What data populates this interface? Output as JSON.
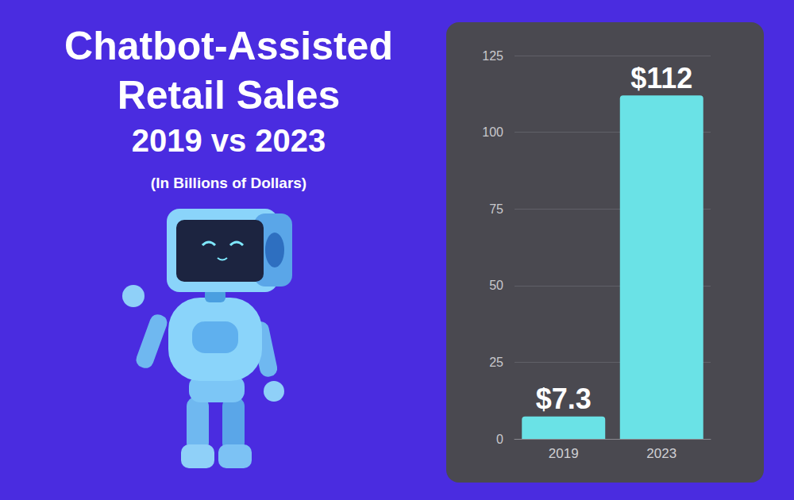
{
  "chart_data": {
    "type": "bar",
    "title": "Chatbot-Assisted Retail Sales",
    "subtitle": "2019 vs 2023",
    "annotation": "(In Billions of Dollars)",
    "categories": [
      "2019",
      "2023"
    ],
    "values": [
      7.3,
      112
    ],
    "value_labels": [
      "$7.3",
      "$112"
    ],
    "color": "#6ae2e6",
    "ylim": [
      0,
      125
    ],
    "yticks": [
      0,
      25,
      50,
      75,
      100,
      125
    ],
    "grid": true,
    "data_labels": true
  }
}
